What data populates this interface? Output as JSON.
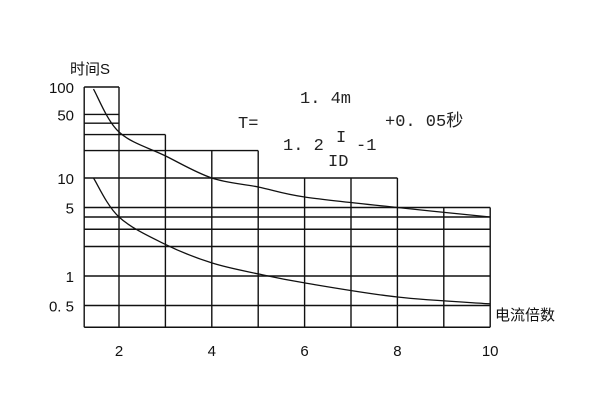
{
  "chart_data": {
    "type": "line",
    "title": "",
    "ylabel": "时间S",
    "xlabel": "电流倍数",
    "y_scale": "log",
    "xlim": [
      1.25,
      10
    ],
    "ylim": [
      0.3,
      100
    ],
    "grid": true,
    "x_ticks": [
      {
        "value": 2,
        "label": "2"
      },
      {
        "value": 4,
        "label": "4"
      },
      {
        "value": 6,
        "label": "6"
      },
      {
        "value": 8,
        "label": "8"
      },
      {
        "value": 10,
        "label": "10"
      }
    ],
    "y_ticks": [
      {
        "value": 100,
        "label": "100"
      },
      {
        "value": 50,
        "label": "50"
      },
      {
        "value": 10,
        "label": "10"
      },
      {
        "value": 5,
        "label": "5"
      },
      {
        "value": 1,
        "label": "1"
      },
      {
        "value": 0.5,
        "label": "0. 5"
      }
    ],
    "grid_horizontal": [
      {
        "y": 100,
        "x_end": 2
      },
      {
        "y": 50,
        "x_end": 2
      },
      {
        "y": 40,
        "x_end": 2
      },
      {
        "y": 30,
        "x_end": 3
      },
      {
        "y": 20,
        "x_end": 5
      },
      {
        "y": 10,
        "x_end": 8
      },
      {
        "y": 5,
        "x_end": 10
      },
      {
        "y": 4,
        "x_end": 10
      },
      {
        "y": 3,
        "x_end": 10
      },
      {
        "y": 2,
        "x_end": 10
      },
      {
        "y": 1,
        "x_end": 10
      },
      {
        "y": 0.5,
        "x_end": 10
      },
      {
        "y": 0.3,
        "x_end": 10
      }
    ],
    "grid_vertical": [
      {
        "x": 1.25,
        "y_top": 100
      },
      {
        "x": 2,
        "y_top": 100
      },
      {
        "x": 3,
        "y_top": 30
      },
      {
        "x": 4,
        "y_top": 20
      },
      {
        "x": 5,
        "y_top": 20
      },
      {
        "x": 6,
        "y_top": 10
      },
      {
        "x": 7,
        "y_top": 10
      },
      {
        "x": 8,
        "y_top": 10
      },
      {
        "x": 9,
        "y_top": 5
      },
      {
        "x": 10,
        "y_top": 5
      }
    ],
    "series": [
      {
        "x": [
          1.45,
          2,
          3,
          4,
          5,
          6,
          8,
          10
        ],
        "y": [
          95,
          32,
          17.5,
          10,
          8.1,
          6.4,
          5,
          4
        ]
      },
      {
        "x": [
          1.45,
          2,
          3,
          4,
          5,
          6,
          8,
          10
        ],
        "y": [
          10,
          4,
          2.1,
          1.36,
          1.05,
          0.85,
          0.61,
          0.52
        ]
      }
    ],
    "annotation": {
      "lhs": "T=",
      "numerator": "1. 4m",
      "denominator_coef": "1. 2",
      "ratio_top": "I",
      "ratio_bottom": "ID",
      "minus_one": "-1",
      "addend": "+0. 05秒"
    },
    "colors": {
      "line": "#111111",
      "text": "#222222"
    }
  }
}
